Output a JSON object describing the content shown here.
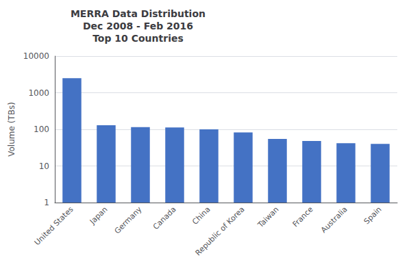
{
  "chart_data": {
    "type": "bar",
    "title": "MERRA Data Distribution\nDec 2008 - Feb 2016\nTop 10 Countries",
    "ylabel": "Volume (TBs)",
    "categories": [
      "United States",
      "Japan",
      "Germany",
      "Canada",
      "China",
      "Republic of Korea",
      "Taiwan",
      "France",
      "Australia",
      "Spain"
    ],
    "values": [
      2500,
      130,
      115,
      112,
      100,
      82,
      55,
      48,
      42,
      40
    ],
    "color": "#4472C4",
    "log": "y",
    "ylim": [
      1,
      10000
    ],
    "yticks": [
      1,
      10,
      100,
      1000,
      10000
    ],
    "grid": true
  }
}
